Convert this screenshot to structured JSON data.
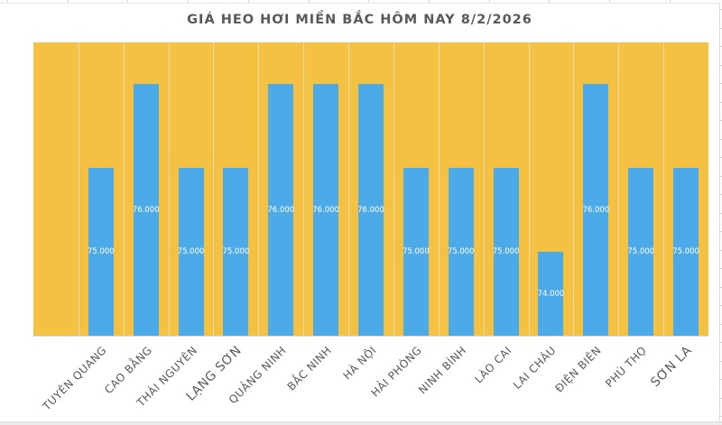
{
  "chart_data": {
    "type": "bar",
    "title": "GIÁ HEO HƠI MIỀN BẮC HÔM NAY 8/2/2026",
    "xlabel": "",
    "ylabel": "",
    "categories": [
      "",
      "TUYÊN QUANG",
      "CAO BẰNG",
      "THÁI NGUYÊN",
      "LẠNG SƠN",
      "QUẢNG NINH",
      "BẮC NINH",
      "HÀ NỘI",
      "HẢI PHÒNG",
      "NINH BÌNH",
      "LÀO CAI",
      "LAI CHÂU",
      "ĐIỆN BIÊN",
      "PHÚ THỌ",
      "SƠN LA"
    ],
    "values": [
      null,
      75000,
      76000,
      75000,
      75000,
      76000,
      76000,
      76000,
      75000,
      75000,
      75000,
      74000,
      76000,
      75000,
      75000
    ],
    "value_labels": [
      "",
      "75.000",
      "76.000",
      "75.000",
      "75.000",
      "76.000",
      "76.000",
      "76.000",
      "75.000",
      "75.000",
      "75.000",
      "74.000",
      "76.000",
      "75.000",
      "75.000"
    ],
    "ylim": [
      73000,
      76500
    ],
    "grid": false,
    "legend": null,
    "colors": {
      "bar": "#4daae8",
      "plot_background": "#f4c142",
      "title": "#595959",
      "axis_text": "#595959",
      "data_label": "#ffffff"
    }
  },
  "title": "GIÁ HEO HƠI MIỀN BẮC HÔM NAY 8/2/2026"
}
